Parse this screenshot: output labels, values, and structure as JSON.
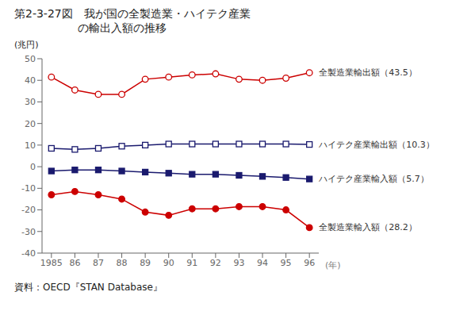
{
  "chart_data": {
    "type": "line",
    "title": "第2-3-27図　我が国の全製造業・ハイテク産業",
    "subtitle": "の輸出入額の推移",
    "source": "資料：OECD『STAN Database』",
    "x_label": "(年)",
    "y_label": "(兆円)",
    "x": [
      1985,
      1986,
      1987,
      1988,
      1989,
      1990,
      1991,
      1992,
      1993,
      1994,
      1995,
      1996
    ],
    "xlim": [
      1984.6,
      1996.4
    ],
    "xticks": [
      1985,
      {
        "value": 1986,
        "label": "86"
      },
      {
        "value": 1987,
        "label": "87"
      },
      {
        "value": 1988,
        "label": "88"
      },
      {
        "value": 1989,
        "label": "89"
      },
      {
        "value": 1990,
        "label": "90"
      },
      {
        "value": 1991,
        "label": "91"
      },
      {
        "value": 1992,
        "label": "92"
      },
      {
        "value": 1993,
        "label": "93"
      },
      {
        "value": 1994,
        "label": "94"
      },
      {
        "value": 1995,
        "label": "95"
      },
      {
        "value": 1996,
        "label": "96"
      }
    ],
    "ylim": [
      -40,
      50
    ],
    "yticks": [
      -40,
      -30,
      -20,
      -10,
      0,
      10,
      20,
      30,
      40,
      50
    ],
    "grid": false,
    "series": [
      {
        "name": "全製造業輸出額（43.5）",
        "color": "#cc0000",
        "marker": "open_circle",
        "values": [
          41.5,
          35.5,
          33.5,
          33.5,
          40.5,
          41.5,
          42.5,
          43.0,
          40.5,
          40.0,
          41.0,
          43.5
        ]
      },
      {
        "name": "ハイテク産業輸出額（10.3）",
        "color": "#1a1a6e",
        "marker": "open_square",
        "values": [
          8.5,
          8.0,
          8.5,
          9.5,
          10.0,
          10.5,
          10.5,
          10.5,
          10.5,
          10.5,
          10.5,
          10.3
        ]
      },
      {
        "name": "ハイテク産業輸入額（5.7）",
        "color": "#1a1a6e",
        "marker": "filled_square",
        "values": [
          -2.0,
          -1.5,
          -1.5,
          -2.0,
          -2.5,
          -3.0,
          -3.5,
          -3.5,
          -4.0,
          -4.5,
          -5.0,
          -5.7
        ]
      },
      {
        "name": "全製造業輸入額（28.2）",
        "color": "#cc0000",
        "marker": "filled_circle",
        "values": [
          -13.0,
          -11.5,
          -13.0,
          -15.0,
          -21.0,
          -22.5,
          -19.5,
          -19.5,
          -18.5,
          -18.5,
          -20.0,
          -28.2
        ]
      }
    ]
  }
}
